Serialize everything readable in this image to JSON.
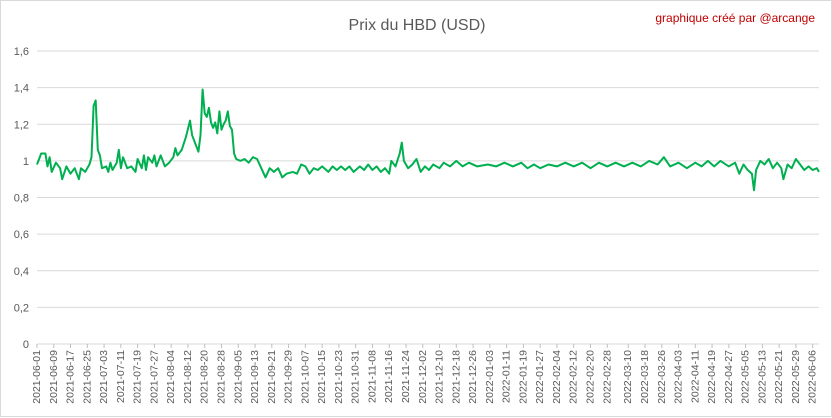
{
  "chart_data": {
    "type": "line",
    "title": "Prix du HBD (USD)",
    "annotation": "graphique créé par @arcange",
    "xlabel": "",
    "ylabel": "",
    "ylim": [
      0,
      1.6
    ],
    "yticks": [
      "0",
      "0,2",
      "0,4",
      "0,6",
      "0,8",
      "1",
      "1,2",
      "1,4",
      "1,6"
    ],
    "grid": true,
    "legend": "none",
    "line_color": "#00b050",
    "x_start": "2021-06-01",
    "x_end": "2022-06-09",
    "x_tick_labels": [
      "2021-06-01",
      "2021-06-09",
      "2021-06-17",
      "2021-06-25",
      "2021-07-03",
      "2021-07-11",
      "2021-07-19",
      "2021-07-27",
      "2021-08-04",
      "2021-08-12",
      "2021-08-20",
      "2021-08-28",
      "2021-09-05",
      "2021-09-13",
      "2021-09-21",
      "2021-09-29",
      "2021-10-07",
      "2021-10-15",
      "2021-10-23",
      "2021-10-31",
      "2021-11-08",
      "2021-11-16",
      "2021-11-24",
      "2021-12-02",
      "2021-12-10",
      "2021-12-18",
      "2021-12-26",
      "2022-01-03",
      "2022-01-11",
      "2022-01-19",
      "2022-01-27",
      "2022-02-04",
      "2022-02-12",
      "2022-02-20",
      "2022-02-28",
      "2022-03-10",
      "2022-03-18",
      "2022-03-26",
      "2022-04-03",
      "2022-04-11",
      "2022-04-19",
      "2022-04-27",
      "2022-05-05",
      "2022-05-13",
      "2022-05-21",
      "2022-05-29",
      "2022-06-06"
    ],
    "series": [
      {
        "name": "",
        "points": [
          {
            "x": "2021-06-01",
            "y": 0.98
          },
          {
            "x": "2021-06-03",
            "y": 1.04
          },
          {
            "x": "2021-06-05",
            "y": 1.04
          },
          {
            "x": "2021-06-06",
            "y": 0.97
          },
          {
            "x": "2021-06-07",
            "y": 1.02
          },
          {
            "x": "2021-06-08",
            "y": 0.94
          },
          {
            "x": "2021-06-10",
            "y": 0.99
          },
          {
            "x": "2021-06-12",
            "y": 0.96
          },
          {
            "x": "2021-06-13",
            "y": 0.9
          },
          {
            "x": "2021-06-15",
            "y": 0.97
          },
          {
            "x": "2021-06-17",
            "y": 0.93
          },
          {
            "x": "2021-06-19",
            "y": 0.96
          },
          {
            "x": "2021-06-21",
            "y": 0.9
          },
          {
            "x": "2021-06-22",
            "y": 0.96
          },
          {
            "x": "2021-06-24",
            "y": 0.94
          },
          {
            "x": "2021-06-26",
            "y": 0.98
          },
          {
            "x": "2021-06-27",
            "y": 1.02
          },
          {
            "x": "2021-06-28",
            "y": 1.3
          },
          {
            "x": "2021-06-29",
            "y": 1.33
          },
          {
            "x": "2021-06-30",
            "y": 1.06
          },
          {
            "x": "2021-07-01",
            "y": 1.03
          },
          {
            "x": "2021-07-02",
            "y": 0.96
          },
          {
            "x": "2021-07-04",
            "y": 0.97
          },
          {
            "x": "2021-07-05",
            "y": 0.94
          },
          {
            "x": "2021-07-06",
            "y": 0.99
          },
          {
            "x": "2021-07-07",
            "y": 0.95
          },
          {
            "x": "2021-07-09",
            "y": 0.99
          },
          {
            "x": "2021-07-10",
            "y": 1.06
          },
          {
            "x": "2021-07-11",
            "y": 0.96
          },
          {
            "x": "2021-07-12",
            "y": 1.02
          },
          {
            "x": "2021-07-14",
            "y": 0.96
          },
          {
            "x": "2021-07-16",
            "y": 0.97
          },
          {
            "x": "2021-07-18",
            "y": 0.94
          },
          {
            "x": "2021-07-19",
            "y": 1.01
          },
          {
            "x": "2021-07-21",
            "y": 0.96
          },
          {
            "x": "2021-07-22",
            "y": 1.03
          },
          {
            "x": "2021-07-23",
            "y": 0.95
          },
          {
            "x": "2021-07-24",
            "y": 1.02
          },
          {
            "x": "2021-07-26",
            "y": 0.99
          },
          {
            "x": "2021-07-27",
            "y": 1.03
          },
          {
            "x": "2021-07-28",
            "y": 0.97
          },
          {
            "x": "2021-07-30",
            "y": 1.03
          },
          {
            "x": "2021-08-01",
            "y": 0.97
          },
          {
            "x": "2021-08-03",
            "y": 0.99
          },
          {
            "x": "2021-08-05",
            "y": 1.02
          },
          {
            "x": "2021-08-06",
            "y": 1.07
          },
          {
            "x": "2021-08-07",
            "y": 1.03
          },
          {
            "x": "2021-08-09",
            "y": 1.06
          },
          {
            "x": "2021-08-11",
            "y": 1.13
          },
          {
            "x": "2021-08-13",
            "y": 1.22
          },
          {
            "x": "2021-08-14",
            "y": 1.14
          },
          {
            "x": "2021-08-16",
            "y": 1.08
          },
          {
            "x": "2021-08-17",
            "y": 1.05
          },
          {
            "x": "2021-08-18",
            "y": 1.14
          },
          {
            "x": "2021-08-19",
            "y": 1.39
          },
          {
            "x": "2021-08-20",
            "y": 1.26
          },
          {
            "x": "2021-08-21",
            "y": 1.24
          },
          {
            "x": "2021-08-22",
            "y": 1.29
          },
          {
            "x": "2021-08-23",
            "y": 1.21
          },
          {
            "x": "2021-08-24",
            "y": 1.18
          },
          {
            "x": "2021-08-25",
            "y": 1.21
          },
          {
            "x": "2021-08-26",
            "y": 1.15
          },
          {
            "x": "2021-08-27",
            "y": 1.27
          },
          {
            "x": "2021-08-28",
            "y": 1.17
          },
          {
            "x": "2021-08-29",
            "y": 1.2
          },
          {
            "x": "2021-08-30",
            "y": 1.22
          },
          {
            "x": "2021-08-31",
            "y": 1.27
          },
          {
            "x": "2021-09-01",
            "y": 1.19
          },
          {
            "x": "2021-09-02",
            "y": 1.17
          },
          {
            "x": "2021-09-03",
            "y": 1.04
          },
          {
            "x": "2021-09-04",
            "y": 1.01
          },
          {
            "x": "2021-09-06",
            "y": 1
          },
          {
            "x": "2021-09-08",
            "y": 1.01
          },
          {
            "x": "2021-09-10",
            "y": 0.99
          },
          {
            "x": "2021-09-12",
            "y": 1.02
          },
          {
            "x": "2021-09-14",
            "y": 1.01
          },
          {
            "x": "2021-09-16",
            "y": 0.96
          },
          {
            "x": "2021-09-18",
            "y": 0.91
          },
          {
            "x": "2021-09-20",
            "y": 0.96
          },
          {
            "x": "2021-09-22",
            "y": 0.94
          },
          {
            "x": "2021-09-24",
            "y": 0.96
          },
          {
            "x": "2021-09-26",
            "y": 0.91
          },
          {
            "x": "2021-09-28",
            "y": 0.93
          },
          {
            "x": "2021-10-01",
            "y": 0.94
          },
          {
            "x": "2021-10-03",
            "y": 0.93
          },
          {
            "x": "2021-10-05",
            "y": 0.98
          },
          {
            "x": "2021-10-07",
            "y": 0.97
          },
          {
            "x": "2021-10-09",
            "y": 0.93
          },
          {
            "x": "2021-10-11",
            "y": 0.96
          },
          {
            "x": "2021-10-13",
            "y": 0.95
          },
          {
            "x": "2021-10-15",
            "y": 0.97
          },
          {
            "x": "2021-10-18",
            "y": 0.94
          },
          {
            "x": "2021-10-20",
            "y": 0.97
          },
          {
            "x": "2021-10-22",
            "y": 0.95
          },
          {
            "x": "2021-10-24",
            "y": 0.97
          },
          {
            "x": "2021-10-26",
            "y": 0.95
          },
          {
            "x": "2021-10-28",
            "y": 0.97
          },
          {
            "x": "2021-10-30",
            "y": 0.94
          },
          {
            "x": "2021-11-02",
            "y": 0.97
          },
          {
            "x": "2021-11-04",
            "y": 0.95
          },
          {
            "x": "2021-11-06",
            "y": 0.98
          },
          {
            "x": "2021-11-08",
            "y": 0.95
          },
          {
            "x": "2021-11-10",
            "y": 0.97
          },
          {
            "x": "2021-11-12",
            "y": 0.94
          },
          {
            "x": "2021-11-14",
            "y": 0.96
          },
          {
            "x": "2021-11-16",
            "y": 0.93
          },
          {
            "x": "2021-11-17",
            "y": 1
          },
          {
            "x": "2021-11-19",
            "y": 0.97
          },
          {
            "x": "2021-11-21",
            "y": 1.04
          },
          {
            "x": "2021-11-22",
            "y": 1.1
          },
          {
            "x": "2021-11-23",
            "y": 1
          },
          {
            "x": "2021-11-25",
            "y": 0.96
          },
          {
            "x": "2021-11-27",
            "y": 0.98
          },
          {
            "x": "2021-11-29",
            "y": 1.01
          },
          {
            "x": "2021-12-01",
            "y": 0.94
          },
          {
            "x": "2021-12-03",
            "y": 0.97
          },
          {
            "x": "2021-12-05",
            "y": 0.95
          },
          {
            "x": "2021-12-07",
            "y": 0.98
          },
          {
            "x": "2021-12-10",
            "y": 0.96
          },
          {
            "x": "2021-12-12",
            "y": 0.99
          },
          {
            "x": "2021-12-15",
            "y": 0.97
          },
          {
            "x": "2021-12-18",
            "y": 1
          },
          {
            "x": "2021-12-21",
            "y": 0.97
          },
          {
            "x": "2021-12-24",
            "y": 0.99
          },
          {
            "x": "2021-12-28",
            "y": 0.97
          },
          {
            "x": "2022-01-02",
            "y": 0.98
          },
          {
            "x": "2022-01-06",
            "y": 0.97
          },
          {
            "x": "2022-01-10",
            "y": 0.99
          },
          {
            "x": "2022-01-14",
            "y": 0.97
          },
          {
            "x": "2022-01-18",
            "y": 0.99
          },
          {
            "x": "2022-01-21",
            "y": 0.96
          },
          {
            "x": "2022-01-24",
            "y": 0.98
          },
          {
            "x": "2022-01-27",
            "y": 0.96
          },
          {
            "x": "2022-01-31",
            "y": 0.98
          },
          {
            "x": "2022-02-04",
            "y": 0.97
          },
          {
            "x": "2022-02-08",
            "y": 0.99
          },
          {
            "x": "2022-02-12",
            "y": 0.97
          },
          {
            "x": "2022-02-16",
            "y": 0.99
          },
          {
            "x": "2022-02-20",
            "y": 0.96
          },
          {
            "x": "2022-02-24",
            "y": 0.99
          },
          {
            "x": "2022-02-28",
            "y": 0.97
          },
          {
            "x": "2022-03-04",
            "y": 0.99
          },
          {
            "x": "2022-03-08",
            "y": 0.97
          },
          {
            "x": "2022-03-12",
            "y": 0.99
          },
          {
            "x": "2022-03-16",
            "y": 0.97
          },
          {
            "x": "2022-03-20",
            "y": 1
          },
          {
            "x": "2022-03-24",
            "y": 0.98
          },
          {
            "x": "2022-03-27",
            "y": 1.02
          },
          {
            "x": "2022-03-30",
            "y": 0.97
          },
          {
            "x": "2022-04-03",
            "y": 0.99
          },
          {
            "x": "2022-04-07",
            "y": 0.96
          },
          {
            "x": "2022-04-11",
            "y": 0.99
          },
          {
            "x": "2022-04-14",
            "y": 0.97
          },
          {
            "x": "2022-04-17",
            "y": 1
          },
          {
            "x": "2022-04-20",
            "y": 0.97
          },
          {
            "x": "2022-04-23",
            "y": 1
          },
          {
            "x": "2022-04-27",
            "y": 0.97
          },
          {
            "x": "2022-04-30",
            "y": 0.99
          },
          {
            "x": "2022-05-02",
            "y": 0.93
          },
          {
            "x": "2022-05-04",
            "y": 0.98
          },
          {
            "x": "2022-05-06",
            "y": 0.95
          },
          {
            "x": "2022-05-08",
            "y": 0.93
          },
          {
            "x": "2022-05-09",
            "y": 0.84
          },
          {
            "x": "2022-05-10",
            "y": 0.95
          },
          {
            "x": "2022-05-12",
            "y": 1
          },
          {
            "x": "2022-05-14",
            "y": 0.98
          },
          {
            "x": "2022-05-16",
            "y": 1.01
          },
          {
            "x": "2022-05-18",
            "y": 0.96
          },
          {
            "x": "2022-05-20",
            "y": 0.99
          },
          {
            "x": "2022-05-22",
            "y": 0.96
          },
          {
            "x": "2022-05-23",
            "y": 0.9
          },
          {
            "x": "2022-05-25",
            "y": 0.98
          },
          {
            "x": "2022-05-27",
            "y": 0.96
          },
          {
            "x": "2022-05-29",
            "y": 1.01
          },
          {
            "x": "2022-05-31",
            "y": 0.98
          },
          {
            "x": "2022-06-02",
            "y": 0.95
          },
          {
            "x": "2022-06-04",
            "y": 0.97
          },
          {
            "x": "2022-06-06",
            "y": 0.95
          },
          {
            "x": "2022-06-08",
            "y": 0.96
          },
          {
            "x": "2022-06-09",
            "y": 0.94
          }
        ]
      }
    ]
  }
}
